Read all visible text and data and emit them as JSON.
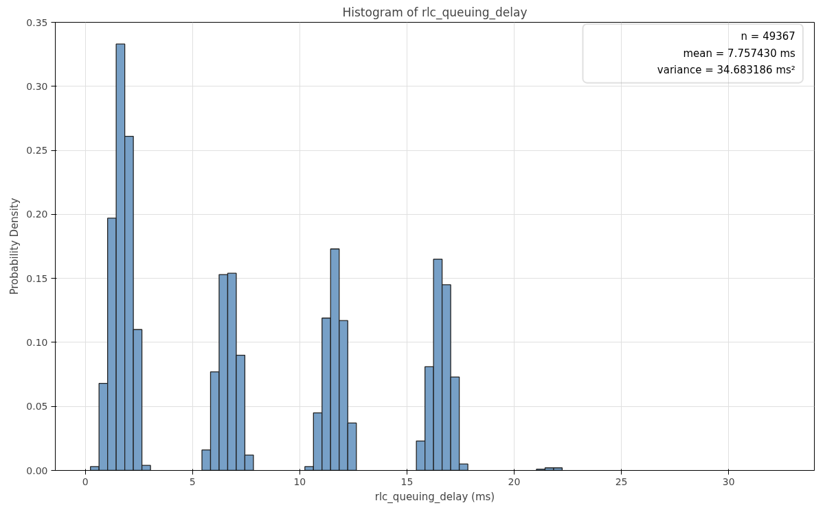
{
  "chart_data": {
    "type": "histogram",
    "title": "Histogram of rlc_queuing_delay",
    "xlabel": "rlc_queuing_delay (ms)",
    "ylabel": "Probability Density",
    "bins": [
      0.24,
      0.64,
      1.04,
      1.44,
      1.84,
      2.24,
      2.64,
      3.04,
      3.44,
      3.84,
      4.24,
      4.64,
      5.04,
      5.44,
      5.84,
      6.24,
      6.64,
      7.04,
      7.44,
      7.84,
      8.24,
      8.64,
      9.04,
      9.44,
      9.84,
      10.24,
      10.64,
      11.04,
      11.44,
      11.84,
      12.24,
      12.64,
      13.04,
      13.44,
      13.84,
      14.24,
      14.64,
      15.04,
      15.44,
      15.84,
      16.24,
      16.64,
      17.04,
      17.44,
      17.84,
      18.24,
      18.64,
      19.04,
      19.44,
      19.84,
      20.24,
      20.64,
      21.04,
      21.44,
      21.84,
      22.24,
      22.64,
      23.04,
      23.44,
      23.84,
      24.24,
      24.64,
      25.04,
      25.44,
      25.84,
      26.24,
      26.64,
      27.04,
      27.44,
      27.84,
      28.24,
      28.64,
      29.04,
      29.44,
      29.84,
      30.24,
      30.64,
      31.04,
      31.44,
      31.84,
      32.24
    ],
    "values": [
      0.003,
      0.068,
      0.197,
      0.333,
      0.261,
      0.11,
      0.004,
      0,
      0,
      0,
      0,
      0,
      0,
      0.016,
      0.077,
      0.153,
      0.154,
      0.09,
      0.012,
      0,
      0,
      0,
      0,
      0,
      0,
      0.003,
      0.045,
      0.119,
      0.173,
      0.117,
      0.037,
      0,
      0,
      0,
      0,
      0,
      0,
      0,
      0.023,
      0.081,
      0.165,
      0.145,
      0.073,
      0.005,
      0,
      0,
      0,
      0,
      0,
      0,
      0,
      0,
      0.001,
      0.002,
      0.002,
      0,
      0,
      0,
      0,
      0,
      0,
      0,
      0,
      0,
      0,
      0,
      0,
      0,
      0,
      0,
      0,
      0,
      0,
      0,
      0,
      0,
      0,
      0,
      0,
      0
    ],
    "color": "#77a0c7",
    "xlim": [
      -1.4,
      34
    ],
    "xticks": [
      0,
      5,
      10,
      15,
      20,
      25,
      30
    ],
    "ylim": [
      0,
      0.35
    ],
    "yticks": [
      {
        "value": 0,
        "label": "0.00"
      },
      {
        "value": 0.05,
        "label": "0.05"
      },
      {
        "value": 0.1,
        "label": "0.10"
      },
      {
        "value": 0.15,
        "label": "0.15"
      },
      {
        "value": 0.2,
        "label": "0.20"
      },
      {
        "value": 0.25,
        "label": "0.25"
      },
      {
        "value": 0.3,
        "label": "0.30"
      },
      {
        "value": 0.35,
        "label": "0.35"
      }
    ],
    "grid": true,
    "annotations": [
      "n = 49367",
      "mean = 7.757430 ms",
      "variance = 34.683186 ms²"
    ]
  }
}
